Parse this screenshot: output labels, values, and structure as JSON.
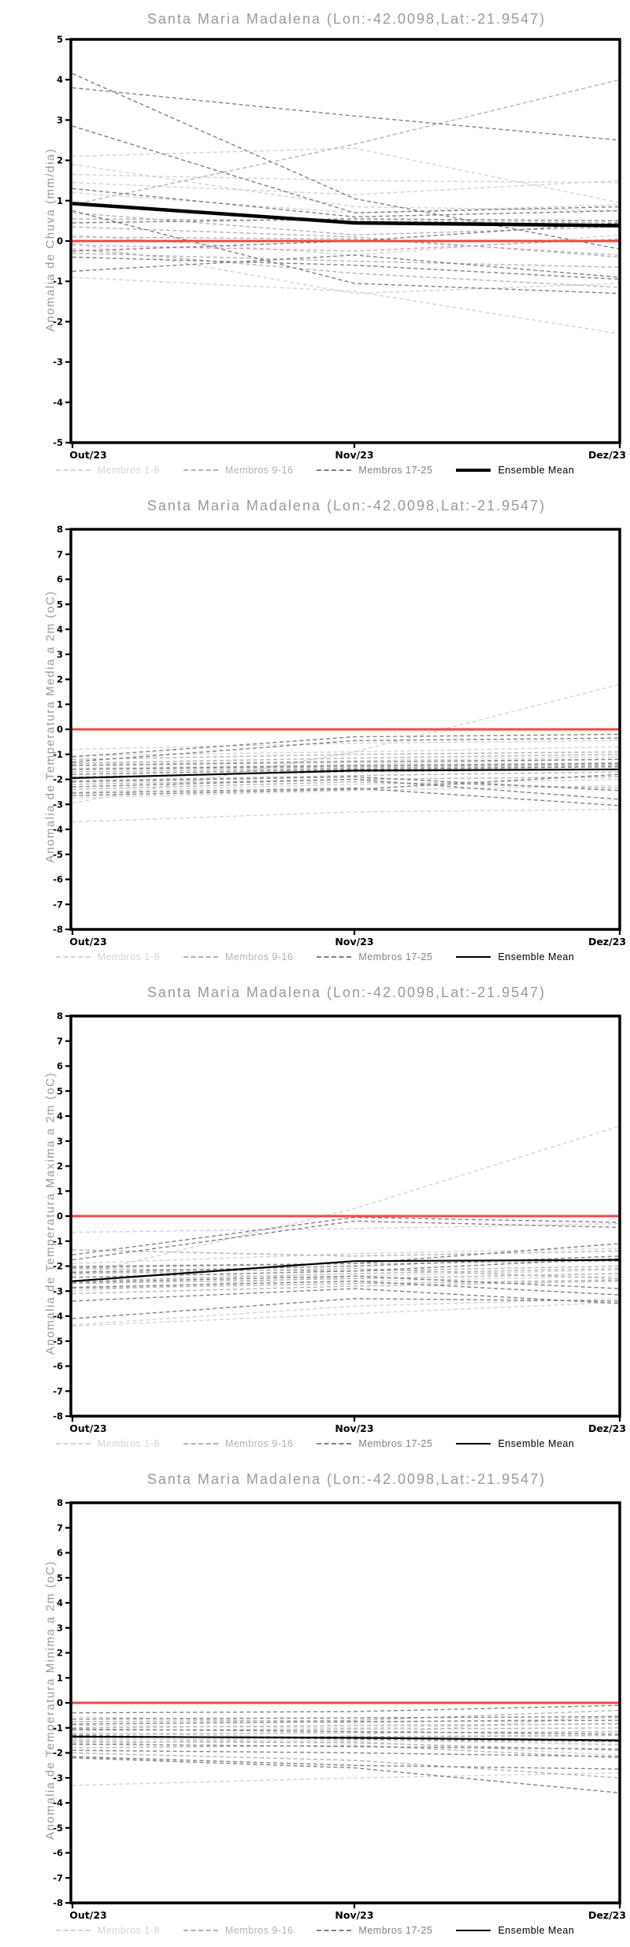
{
  "colors": {
    "title_gray": "#9a9a9a",
    "axis_black": "#000000",
    "zero_line_red": "#f04843",
    "members_1_8": "#d3d3d3",
    "members_9_16": "#b3b3b3",
    "members_17_25": "#828282",
    "ensemble_mean": "#000000"
  },
  "chart_data": [
    {
      "type": "line",
      "title": "Santa Maria Madalena (Lon:-42.0098,Lat:-21.9547)",
      "ylabel": "Anomalia de Chuva (mm/dia)",
      "x_categories": [
        "Out/23",
        "Nov/23",
        "Dez/23"
      ],
      "ylim": [
        -5,
        5
      ],
      "yticks": [
        5,
        4,
        3,
        2,
        1,
        0,
        -1,
        -2,
        -3,
        -4,
        -5
      ],
      "grid": false,
      "legend_position": "bottom",
      "zero_line": {
        "value": 0,
        "color": "#f04843"
      },
      "groups": [
        {
          "name": "Membros 1-8",
          "color": "#d3d3d3",
          "style": "dashed",
          "members": [
            [
              2.1,
              2.3,
              0.95
            ],
            [
              1.9,
              0.85,
              0.75
            ],
            [
              1.65,
              1.5,
              1.45
            ],
            [
              1.45,
              1.15,
              1.5
            ],
            [
              1.2,
              0.7,
              0.9
            ],
            [
              -0.05,
              -1.3,
              -1.05
            ],
            [
              -0.9,
              -1.25,
              -2.3
            ],
            [
              0.15,
              -0.35,
              0.15
            ]
          ]
        },
        {
          "name": "Membros 9-16",
          "color": "#b3b3b3",
          "style": "dashed",
          "members": [
            [
              0.9,
              2.4,
              4.0
            ],
            [
              0.35,
              0.1,
              -0.4
            ],
            [
              -0.1,
              -0.25,
              0.05
            ],
            [
              -0.3,
              -0.5,
              -0.65
            ],
            [
              0.55,
              0.5,
              0.45
            ],
            [
              -0.2,
              -0.8,
              -1.15
            ],
            [
              0.1,
              0.05,
              -0.35
            ],
            [
              0.7,
              0.15,
              0.35
            ]
          ]
        },
        {
          "name": "Membros 17-25",
          "color": "#828282",
          "style": "dashed",
          "members": [
            [
              4.15,
              1.05,
              -0.2
            ],
            [
              3.8,
              3.1,
              2.5
            ],
            [
              2.85,
              0.7,
              0.85
            ],
            [
              1.3,
              0.6,
              0.75
            ],
            [
              0.75,
              -1.05,
              -1.3
            ],
            [
              -0.4,
              -0.6,
              -0.95
            ],
            [
              -0.25,
              0.0,
              0.45
            ],
            [
              0.45,
              0.55,
              0.5
            ],
            [
              -0.75,
              -0.35,
              -0.9
            ]
          ]
        }
      ],
      "ensemble_mean": {
        "name": "Ensemble Mean",
        "color": "#000000",
        "values": [
          0.93,
          0.45,
          0.38
        ]
      }
    },
    {
      "type": "line",
      "title": "Santa Maria Madalena (Lon:-42.0098,Lat:-21.9547)",
      "ylabel": "Anomalia de Temperatura Media a 2m (oC)",
      "x_categories": [
        "Out/23",
        "Nov/23",
        "Dez/23"
      ],
      "ylim": [
        -8,
        8
      ],
      "yticks": [
        8,
        7,
        6,
        5,
        4,
        3,
        2,
        1,
        0,
        -1,
        -2,
        -3,
        -4,
        -5,
        -6,
        -7,
        -8
      ],
      "grid": false,
      "legend_position": "bottom",
      "zero_line": {
        "value": 0,
        "color": "#f04843"
      },
      "groups": [
        {
          "name": "Membros 1-8",
          "color": "#d3d3d3",
          "style": "dashed",
          "members": [
            [
              -0.8,
              -0.55,
              -0.45
            ],
            [
              -1.05,
              -0.9,
              -0.7
            ],
            [
              -2.95,
              -0.9,
              1.8
            ],
            [
              -3.7,
              -3.3,
              -3.2
            ],
            [
              -1.4,
              -1.25,
              -1.1
            ],
            [
              -1.55,
              -1.4,
              -1.2
            ],
            [
              -2.5,
              -2.2,
              -2.0
            ],
            [
              -2.75,
              -2.45,
              -2.25
            ]
          ]
        },
        {
          "name": "Membros 9-16",
          "color": "#b3b3b3",
          "style": "dashed",
          "members": [
            [
              -1.2,
              -1.0,
              -0.9
            ],
            [
              -1.35,
              -1.15,
              -1.0
            ],
            [
              -1.6,
              -1.5,
              -1.4
            ],
            [
              -1.7,
              -1.55,
              -1.45
            ],
            [
              -1.9,
              -1.7,
              -1.6
            ],
            [
              -2.05,
              -1.85,
              -1.7
            ],
            [
              -2.2,
              -2.0,
              -1.9
            ],
            [
              -2.4,
              -2.1,
              -2.35
            ]
          ]
        },
        {
          "name": "Membros 17-25",
          "color": "#828282",
          "style": "dashed",
          "members": [
            [
              -1.1,
              -0.3,
              -0.2
            ],
            [
              -1.3,
              -0.45,
              -0.35
            ],
            [
              -1.45,
              -1.3,
              -1.2
            ],
            [
              -1.6,
              -1.45,
              -1.35
            ],
            [
              -1.8,
              -1.6,
              -1.5
            ],
            [
              -2.1,
              -1.9,
              -2.45
            ],
            [
              -2.3,
              -2.0,
              -2.8
            ],
            [
              -2.55,
              -2.35,
              -3.05
            ],
            [
              -2.65,
              -2.4,
              -1.8
            ]
          ]
        }
      ],
      "ensemble_mean": {
        "name": "Ensemble Mean",
        "color": "#000000",
        "values": [
          -1.95,
          -1.65,
          -1.6
        ]
      }
    },
    {
      "type": "line",
      "title": "Santa Maria Madalena (Lon:-42.0098,Lat:-21.9547)",
      "ylabel": "Anomalia de Temperatura Maxima a 2m (oC)",
      "x_categories": [
        "Out/23",
        "Nov/23",
        "Dez/23"
      ],
      "ylim": [
        -8,
        8
      ],
      "yticks": [
        8,
        7,
        6,
        5,
        4,
        3,
        2,
        1,
        0,
        -1,
        -2,
        -3,
        -4,
        -5,
        -6,
        -7,
        -8
      ],
      "grid": false,
      "legend_position": "bottom",
      "zero_line": {
        "value": 0,
        "color": "#f04843"
      },
      "groups": [
        {
          "name": "Membros 1-8",
          "color": "#d3d3d3",
          "style": "dashed",
          "members": [
            [
              -0.65,
              -0.5,
              -0.3
            ],
            [
              -4.35,
              -3.6,
              -3.3
            ],
            [
              -2.4,
              0.3,
              3.6
            ],
            [
              -1.9,
              -1.5,
              -1.3
            ],
            [
              -2.2,
              -2.5,
              -2.3
            ],
            [
              -2.85,
              -2.6,
              -2.4
            ],
            [
              -3.0,
              -2.4,
              -2.15
            ],
            [
              -4.4,
              -3.9,
              -3.45
            ]
          ]
        },
        {
          "name": "Membros 9-16",
          "color": "#b3b3b3",
          "style": "dashed",
          "members": [
            [
              -1.35,
              -1.6,
              -1.4
            ],
            [
              -2.0,
              -1.9,
              -1.8
            ],
            [
              -2.1,
              -2.2,
              -2.0
            ],
            [
              -2.3,
              -2.1,
              -2.5
            ],
            [
              -2.6,
              -2.3,
              -2.1
            ],
            [
              -2.7,
              -2.5,
              -2.3
            ],
            [
              -2.9,
              -2.7,
              -2.55
            ],
            [
              -3.1,
              -2.8,
              -2.6
            ]
          ]
        },
        {
          "name": "Membros 17-25",
          "color": "#828282",
          "style": "dashed",
          "members": [
            [
              -1.55,
              -0.05,
              -0.25
            ],
            [
              -1.75,
              -0.2,
              -0.45
            ],
            [
              -2.05,
              -1.9,
              -1.1
            ],
            [
              -2.25,
              -2.0,
              -1.6
            ],
            [
              -2.45,
              -2.2,
              -1.7
            ],
            [
              -2.65,
              -2.4,
              -2.9
            ],
            [
              -2.85,
              -2.6,
              -3.15
            ],
            [
              -3.4,
              -2.9,
              -3.5
            ],
            [
              -4.1,
              -3.3,
              -3.4
            ]
          ]
        }
      ],
      "ensemble_mean": {
        "name": "Ensemble Mean",
        "color": "#000000",
        "values": [
          -2.6,
          -1.8,
          -1.75
        ]
      }
    },
    {
      "type": "line",
      "title": "Santa Maria Madalena (Lon:-42.0098,Lat:-21.9547)",
      "ylabel": "Anomalia de Temperatura Minima a 2m (oC)",
      "x_categories": [
        "Out/23",
        "Nov/23",
        "Dez/23"
      ],
      "ylim": [
        -8,
        8
      ],
      "yticks": [
        8,
        7,
        6,
        5,
        4,
        3,
        2,
        1,
        0,
        -1,
        -2,
        -3,
        -4,
        -5,
        -6,
        -7,
        -8
      ],
      "grid": false,
      "legend_position": "bottom",
      "zero_line": {
        "value": 0,
        "color": "#f04843"
      },
      "groups": [
        {
          "name": "Membros 1-8",
          "color": "#d3d3d3",
          "style": "dashed",
          "members": [
            [
              -0.55,
              -0.8,
              -0.6
            ],
            [
              -1.5,
              -1.4,
              -1.3
            ],
            [
              -1.6,
              -1.5,
              -1.65
            ],
            [
              -1.7,
              -1.3,
              -0.5
            ],
            [
              -3.3,
              -3.0,
              -2.8
            ],
            [
              -1.2,
              -1.4,
              -1.7
            ],
            [
              -0.9,
              -1.0,
              -0.8
            ],
            [
              -1.45,
              -1.55,
              -2.1
            ]
          ]
        },
        {
          "name": "Membros 9-16",
          "color": "#b3b3b3",
          "style": "dashed",
          "members": [
            [
              -0.75,
              -0.7,
              -0.3
            ],
            [
              -1.0,
              -0.9,
              -0.85
            ],
            [
              -1.1,
              -1.05,
              -1.0
            ],
            [
              -1.25,
              -1.2,
              -1.15
            ],
            [
              -1.4,
              -1.35,
              -1.3
            ],
            [
              -1.55,
              -1.6,
              -1.9
            ],
            [
              -1.8,
              -1.7,
              -2.2
            ],
            [
              -2.0,
              -2.3,
              -3.0
            ]
          ]
        },
        {
          "name": "Membros 17-25",
          "color": "#828282",
          "style": "dashed",
          "members": [
            [
              -0.4,
              -0.35,
              -0.1
            ],
            [
              -0.65,
              -0.6,
              -0.55
            ],
            [
              -0.85,
              -0.75,
              -0.7
            ],
            [
              -1.05,
              -1.15,
              -1.25
            ],
            [
              -1.3,
              -1.45,
              -1.55
            ],
            [
              -1.65,
              -1.75,
              -1.85
            ],
            [
              -1.9,
              -2.0,
              -2.15
            ],
            [
              -2.15,
              -2.5,
              -2.65
            ],
            [
              -2.2,
              -2.6,
              -3.6
            ]
          ]
        }
      ],
      "ensemble_mean": {
        "name": "Ensemble Mean",
        "color": "#000000",
        "values": [
          -1.35,
          -1.4,
          -1.5
        ]
      }
    }
  ]
}
